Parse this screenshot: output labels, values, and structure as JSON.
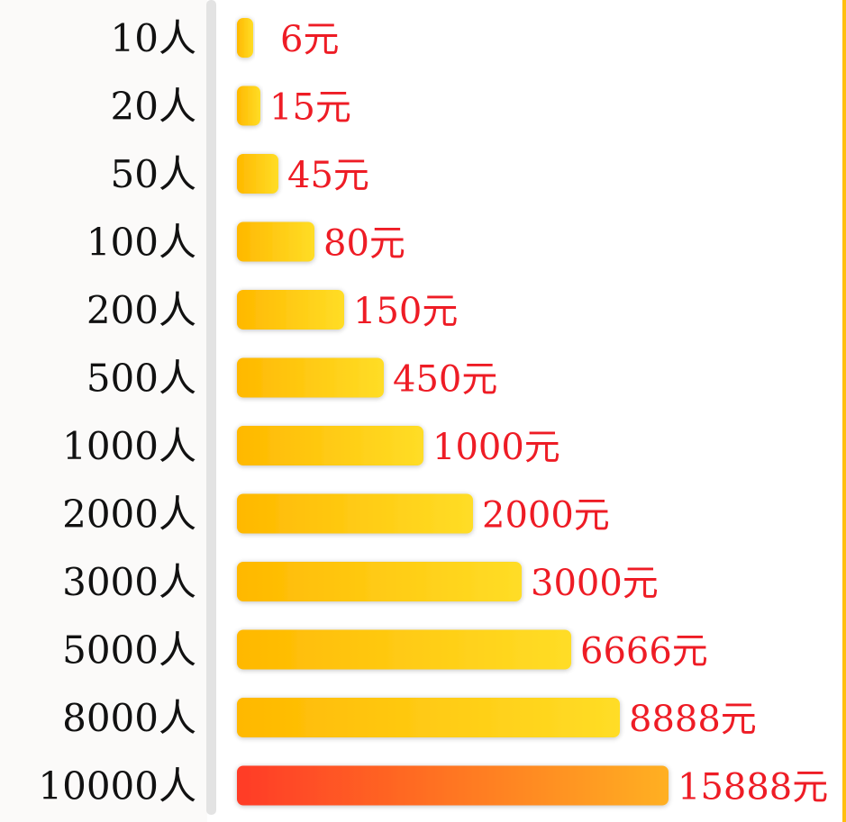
{
  "chart_data": {
    "type": "bar",
    "orientation": "horizontal",
    "categories": [
      "10人",
      "20人",
      "50人",
      "100人",
      "200人",
      "500人",
      "1000人",
      "2000人",
      "3000人",
      "5000人",
      "8000人",
      "10000人"
    ],
    "values": [
      6,
      15,
      45,
      80,
      150,
      450,
      1000,
      2000,
      3000,
      6666,
      8888,
      15888
    ],
    "value_labels": [
      "6元",
      "15元",
      "45元",
      "80元",
      "150元",
      "450元",
      "1000元",
      "2000元",
      "3000元",
      "6666元",
      "8888元",
      "15888元"
    ],
    "title": "",
    "xlabel": "",
    "ylabel": "",
    "grid": false,
    "legend": "none",
    "colors": {
      "bar_start": "#ffb800",
      "bar_end": "#ffdd26",
      "highlight_start": "#ff3b26",
      "highlight_end": "#ffb020",
      "value_label": "#ee1c25",
      "category_label": "#111111",
      "left_axis_line": "#e3e3e3",
      "right_edge_line": "#ffbf10",
      "label_column_bg": "#fbfaf9"
    },
    "highlight_category": "10000人"
  }
}
